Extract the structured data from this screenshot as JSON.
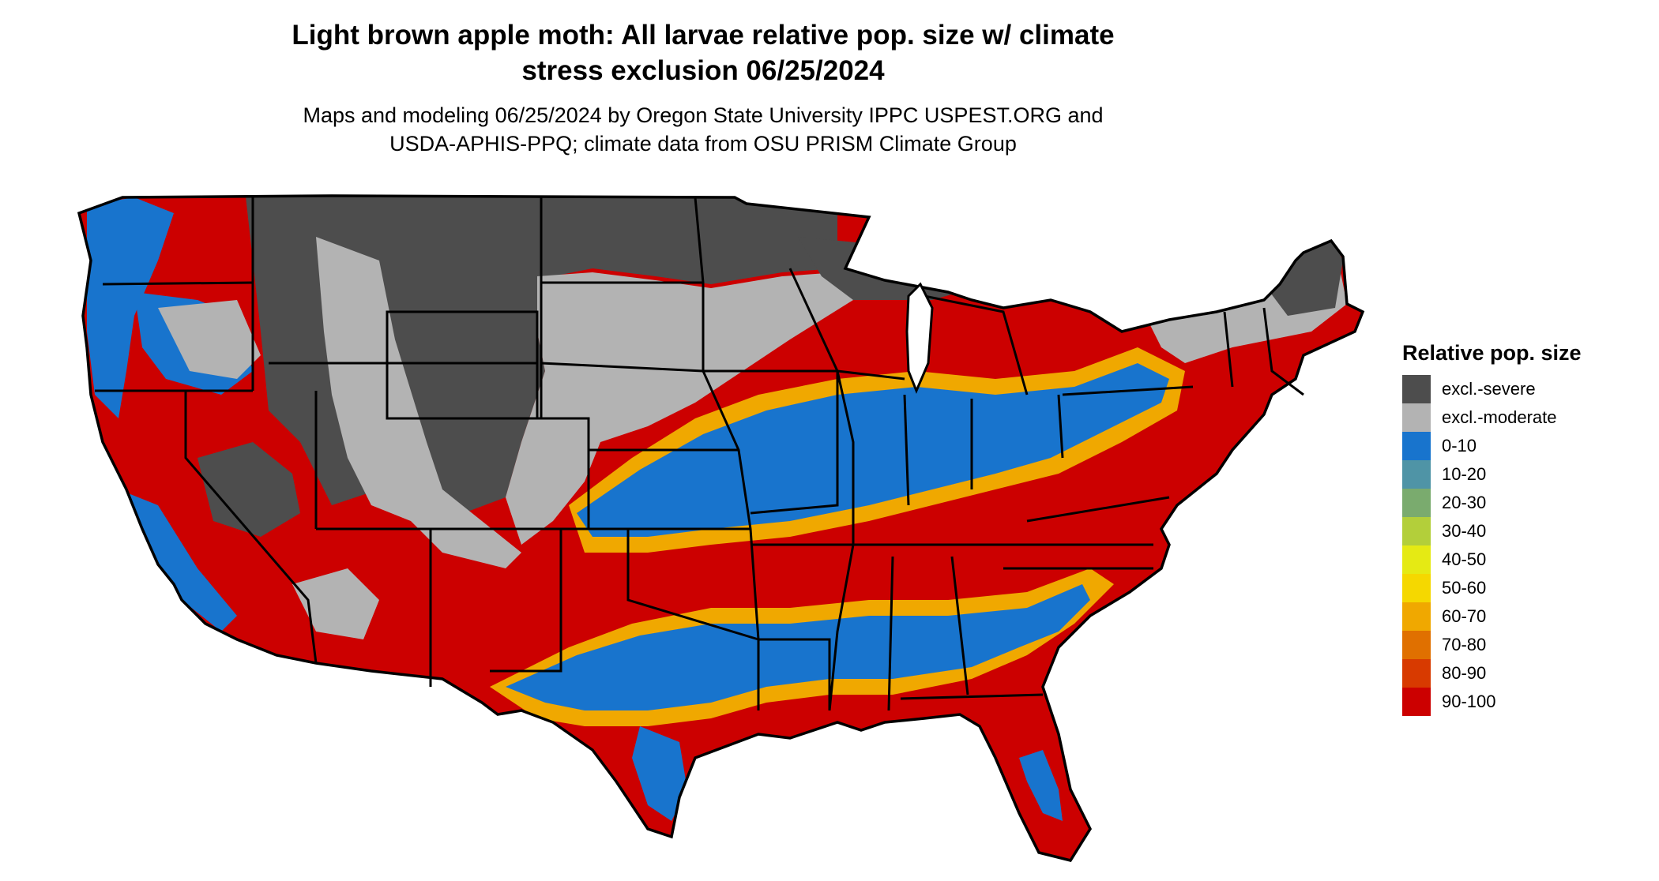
{
  "title": {
    "line1": "Light brown apple moth: All larvae relative pop. size w/ climate",
    "line2": "stress exclusion 06/25/2024"
  },
  "subtitle": {
    "line1": "Maps and modeling 06/25/2024 by Oregon State University IPPC USPEST.ORG and",
    "line2": "USDA-APHIS-PPQ; climate data from OSU PRISM Climate Group"
  },
  "legend": {
    "title": "Relative pop. size",
    "items": [
      {
        "label": "excl.-severe",
        "color": "#4d4d4d"
      },
      {
        "label": "excl.-moderate",
        "color": "#b3b3b3"
      },
      {
        "label": "0-10",
        "color": "#1874cd"
      },
      {
        "label": "10-20",
        "color": "#4f94a6"
      },
      {
        "label": "20-30",
        "color": "#7aab6e"
      },
      {
        "label": "30-40",
        "color": "#b3cf3a"
      },
      {
        "label": "40-50",
        "color": "#e5ea14"
      },
      {
        "label": "50-60",
        "color": "#f5d800"
      },
      {
        "label": "60-70",
        "color": "#f0a800"
      },
      {
        "label": "70-80",
        "color": "#e07000"
      },
      {
        "label": "80-90",
        "color": "#d83a00"
      },
      {
        "label": "90-100",
        "color": "#cc0000"
      }
    ]
  }
}
